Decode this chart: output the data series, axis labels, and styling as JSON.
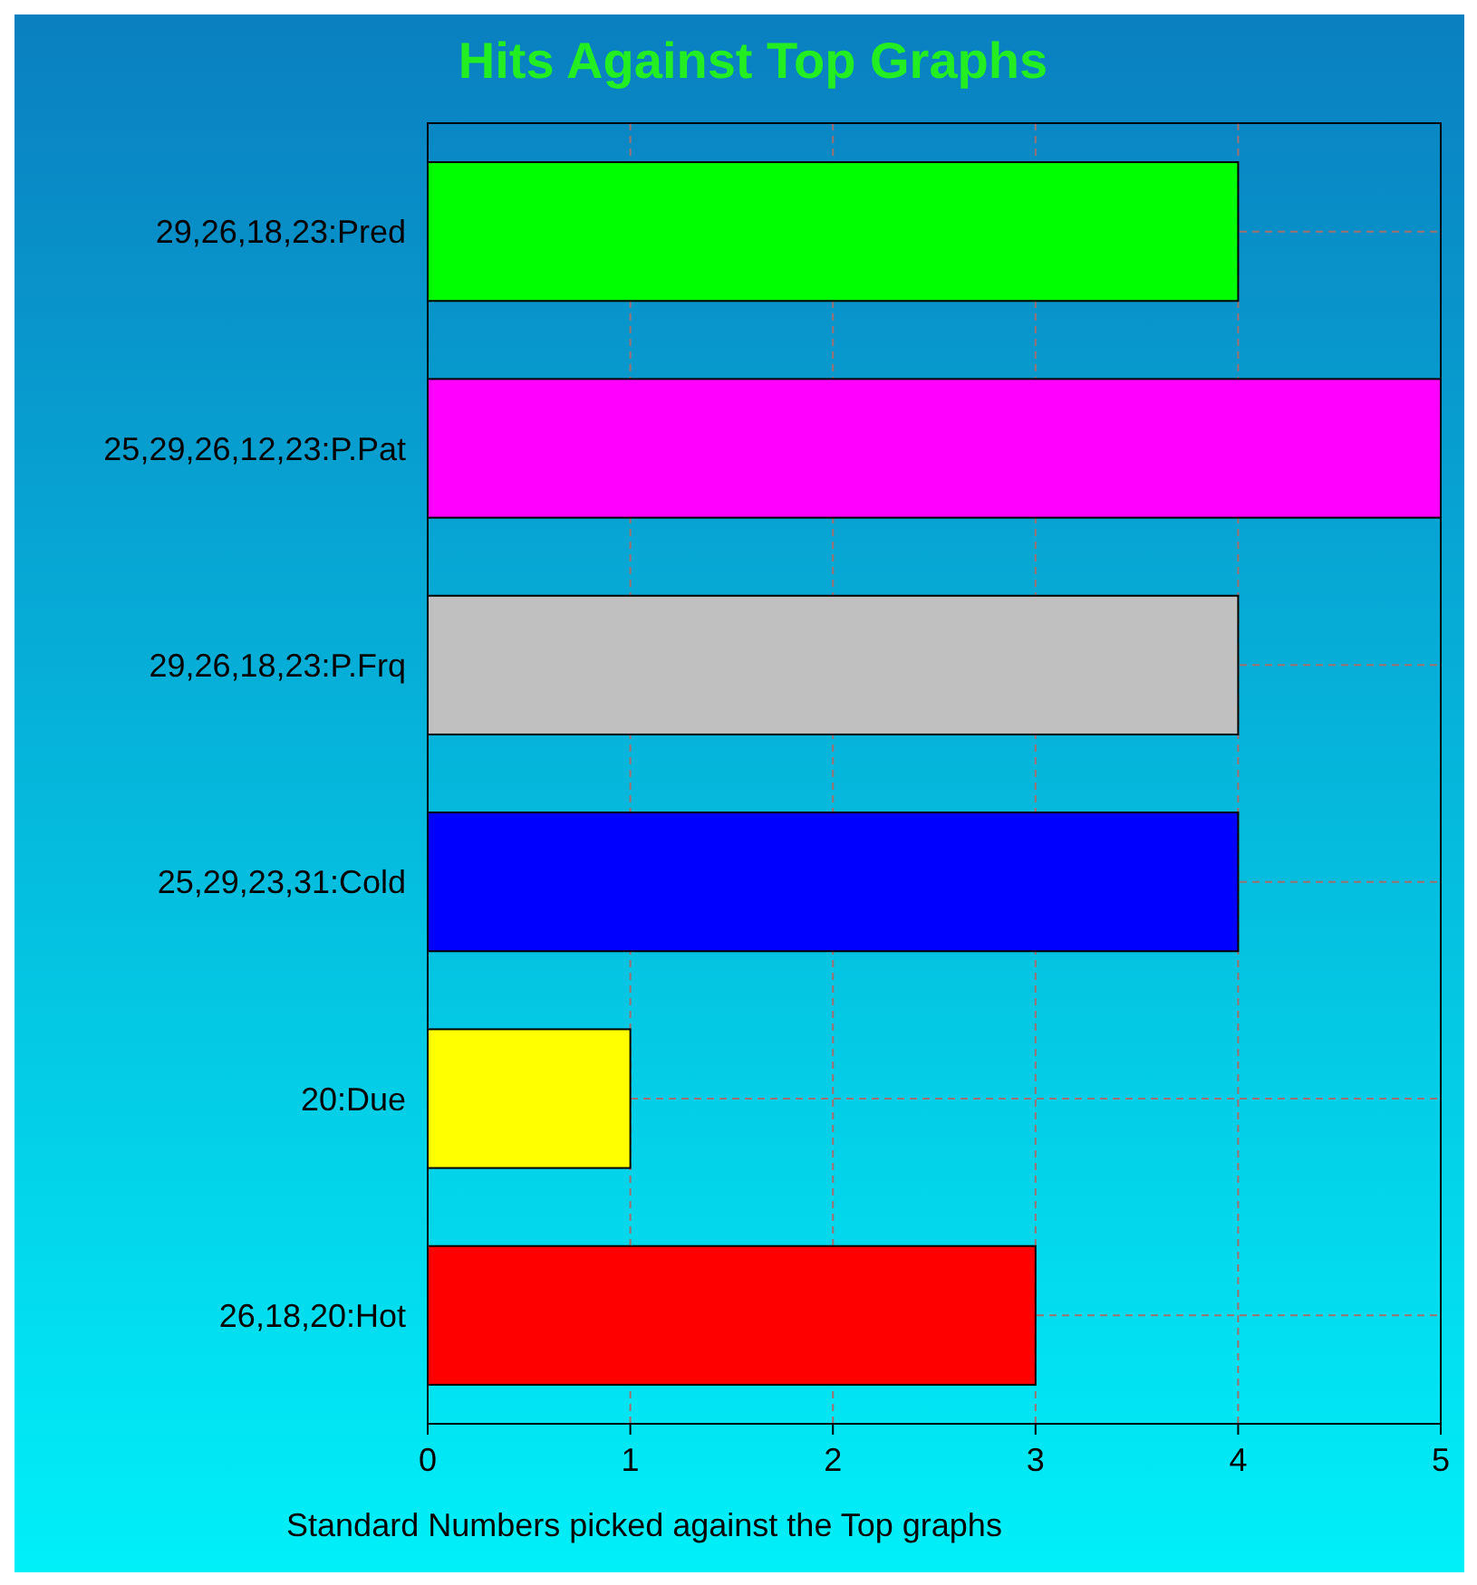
{
  "chart_data": {
    "type": "bar",
    "orientation": "horizontal",
    "title": "Hits Against Top Graphs",
    "xlabel": "Standard Numbers picked against the Top graphs",
    "categories": [
      "29,26,18,23:Pred",
      "25,29,26,12,23:P.Pat",
      "29,26,18,23:P.Frq",
      "25,29,23,31:Cold",
      "20:Due",
      "26,18,20:Hot"
    ],
    "values": [
      4,
      5,
      4,
      4,
      1,
      3
    ],
    "colors": [
      "#00ff00",
      "#ff00ff",
      "#c0c0c0",
      "#0000ff",
      "#ffff00",
      "#ff0000"
    ],
    "xlim": [
      0,
      5
    ],
    "xticks": [
      0,
      1,
      2,
      3,
      4,
      5
    ],
    "grid": true
  }
}
